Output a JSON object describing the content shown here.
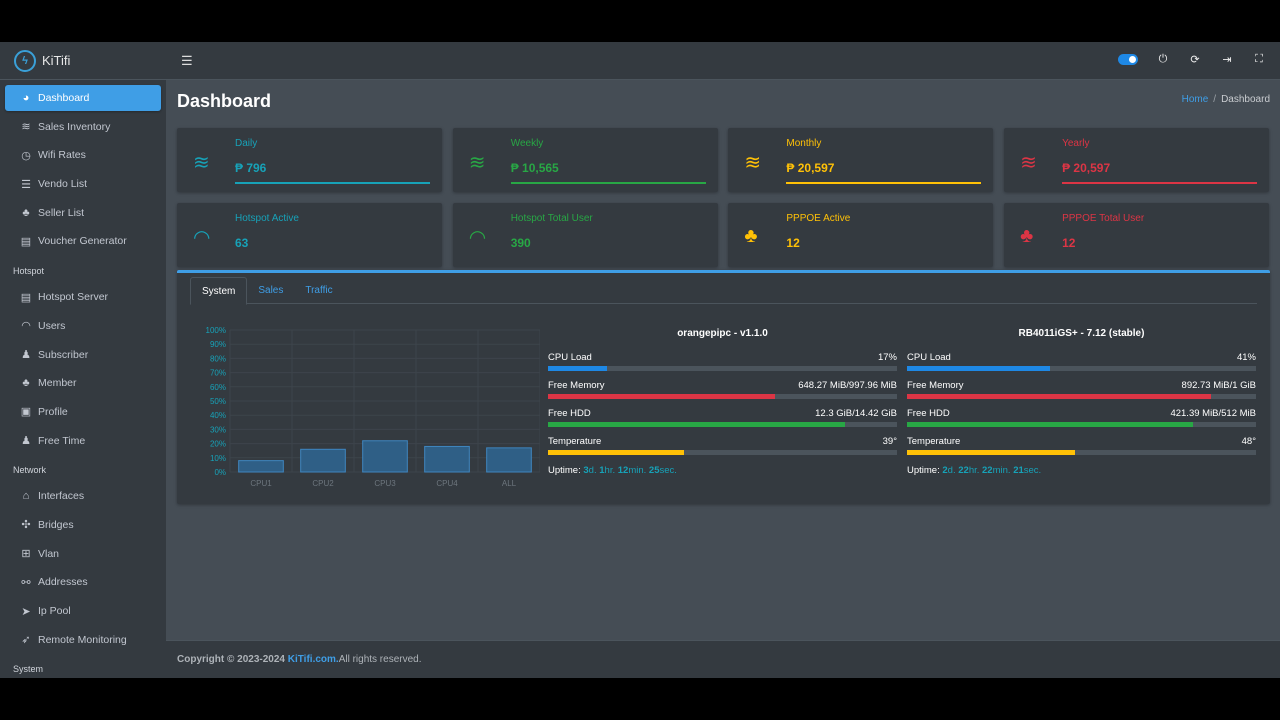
{
  "brand": {
    "name": "KiTifi"
  },
  "sidebar": {
    "items": [
      {
        "label": "Dashboard",
        "icon": "tachometer-icon",
        "glyph": "◕",
        "active": true
      },
      {
        "label": "Sales Inventory",
        "icon": "coins-icon",
        "glyph": "≋"
      },
      {
        "label": "Wifi Rates",
        "icon": "clock-icon",
        "glyph": "◷"
      },
      {
        "label": "Vendo List",
        "icon": "list-icon",
        "glyph": "☰"
      },
      {
        "label": "Seller List",
        "icon": "users-icon",
        "glyph": "♣"
      },
      {
        "label": "Voucher Generator",
        "icon": "print-icon",
        "glyph": "▤"
      }
    ],
    "hotspot_header": "Hotspot",
    "hotspot_items": [
      {
        "label": "Hotspot Server",
        "icon": "server-icon",
        "glyph": "▤"
      },
      {
        "label": "Users",
        "icon": "wifi-icon",
        "glyph": "◠"
      },
      {
        "label": "Subscriber",
        "icon": "user-icon",
        "glyph": "♟"
      },
      {
        "label": "Member",
        "icon": "users-cog-icon",
        "glyph": "♣"
      },
      {
        "label": "Profile",
        "icon": "id-card-icon",
        "glyph": "▣"
      },
      {
        "label": "Free Time",
        "icon": "user-clock-icon",
        "glyph": "♟"
      }
    ],
    "network_header": "Network",
    "network_items": [
      {
        "label": "Interfaces",
        "icon": "ethernet-icon",
        "glyph": "⌂"
      },
      {
        "label": "Bridges",
        "icon": "project-diagram-icon",
        "glyph": "✣"
      },
      {
        "label": "Vlan",
        "icon": "sitemap-icon",
        "glyph": "⊞"
      },
      {
        "label": "Addresses",
        "icon": "network-icon",
        "glyph": "⚯"
      },
      {
        "label": "Ip Pool",
        "icon": "location-arrow-icon",
        "glyph": "➤"
      },
      {
        "label": "Remote Monitoring",
        "icon": "rocket-icon",
        "glyph": "➶"
      }
    ],
    "system_header": "System"
  },
  "topbar": {
    "menu_icon": "bars-icon",
    "toggle_on": true
  },
  "page": {
    "title": "Dashboard",
    "breadcrumb_home": "Home",
    "breadcrumb_sep": "/",
    "breadcrumb_current": "Dashboard"
  },
  "stats": [
    {
      "label": "Daily",
      "value": "₱ 796",
      "color": "info",
      "icon": "coins-icon",
      "line": true
    },
    {
      "label": "Weekly",
      "value": "₱ 10,565",
      "color": "success",
      "icon": "coins-icon",
      "line": true
    },
    {
      "label": "Monthly",
      "value": "₱ 20,597",
      "color": "warning",
      "icon": "coins-icon",
      "line": true
    },
    {
      "label": "Yearly",
      "value": "₱ 20,597",
      "color": "danger",
      "icon": "coins-icon",
      "line": true
    },
    {
      "label": "Hotspot Active",
      "value": "63",
      "color": "info",
      "icon": "wifi-icon",
      "line": false
    },
    {
      "label": "Hotspot Total User",
      "value": "390",
      "color": "success",
      "icon": "wifi-icon",
      "line": false
    },
    {
      "label": "PPPOE Active",
      "value": "12",
      "color": "warning",
      "icon": "users-icon",
      "line": false
    },
    {
      "label": "PPPOE Total User",
      "value": "12",
      "color": "danger",
      "icon": "users-icon",
      "line": false
    }
  ],
  "tabs": [
    "System",
    "Sales",
    "Traffic"
  ],
  "chart_data": {
    "type": "bar",
    "categories": [
      "CPU1",
      "CPU2",
      "CPU3",
      "CPU4",
      "ALL"
    ],
    "values": [
      8,
      16,
      22,
      18,
      17
    ],
    "ylim": [
      0,
      100
    ],
    "yticks": [
      "0%",
      "10%",
      "20%",
      "30%",
      "40%",
      "50%",
      "60%",
      "70%",
      "80%",
      "90%",
      "100%"
    ],
    "grid": true
  },
  "systems": [
    {
      "title": "orangepipc - v1.1.0",
      "metrics": [
        {
          "label": "CPU Load",
          "value": "17%",
          "pct": 17,
          "color": "#1e88e5"
        },
        {
          "label": "Free Memory",
          "value": "648.27 MiB/997.96 MiB",
          "pct": 65,
          "color": "#dc3545"
        },
        {
          "label": "Free HDD",
          "value": "12.3 GiB/14.42 GiB",
          "pct": 85,
          "color": "#28a745"
        },
        {
          "label": "Temperature",
          "value": "39°",
          "pct": 39,
          "color": "#ffc107"
        }
      ],
      "uptime_label": "Uptime: ",
      "uptime": [
        [
          "3",
          "d. "
        ],
        [
          "1",
          "hr. "
        ],
        [
          "12",
          "min. "
        ],
        [
          "25",
          "sec."
        ]
      ]
    },
    {
      "title": "RB4011iGS+ - 7.12 (stable)",
      "metrics": [
        {
          "label": "CPU Load",
          "value": "41%",
          "pct": 41,
          "color": "#1e88e5"
        },
        {
          "label": "Free Memory",
          "value": "892.73 MiB/1 GiB",
          "pct": 87,
          "color": "#dc3545"
        },
        {
          "label": "Free HDD",
          "value": "421.39 MiB/512 MiB",
          "pct": 82,
          "color": "#28a745"
        },
        {
          "label": "Temperature",
          "value": "48°",
          "pct": 48,
          "color": "#ffc107"
        }
      ],
      "uptime_label": "Uptime: ",
      "uptime": [
        [
          "2",
          "d. "
        ],
        [
          "22",
          "hr. "
        ],
        [
          "22",
          "min. "
        ],
        [
          "21",
          "sec."
        ]
      ]
    }
  ],
  "footer": {
    "copyright": "Copyright © 2023-2024 ",
    "link": "KiTifi.com.",
    "rest": "All rights reserved."
  }
}
